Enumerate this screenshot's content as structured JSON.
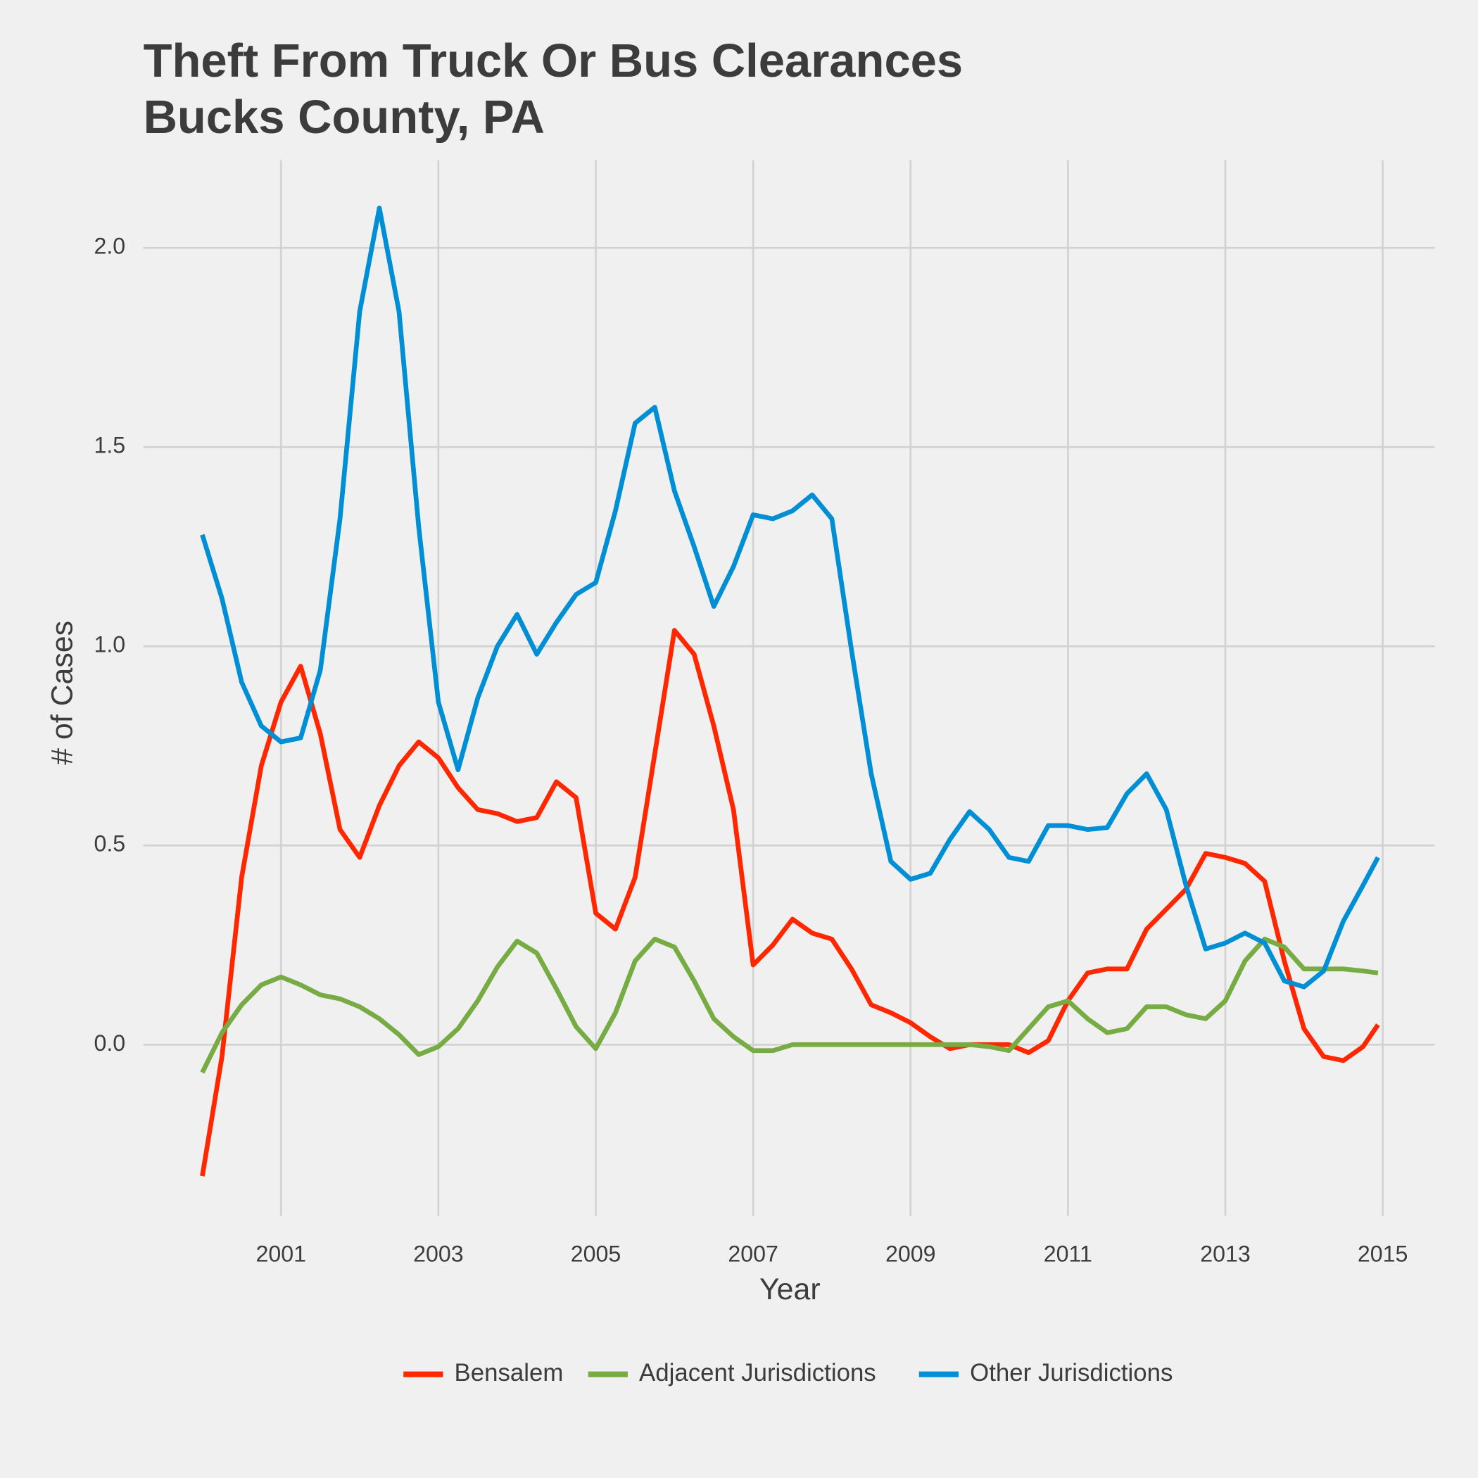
{
  "chart_data": {
    "type": "line",
    "title": [
      "Theft From Truck Or Bus Clearances",
      "Bucks County, PA"
    ],
    "x_label": "Year",
    "y_label": "# of Cases",
    "x": [
      2000,
      2000.25,
      2000.5,
      2000.75,
      2001,
      2001.25,
      2001.5,
      2001.75,
      2002,
      2002.25,
      2002.5,
      2002.75,
      2003,
      2003.25,
      2003.5,
      2003.75,
      2004,
      2004.25,
      2004.5,
      2004.75,
      2005,
      2005.25,
      2005.5,
      2005.75,
      2006,
      2006.25,
      2006.5,
      2006.75,
      2007,
      2007.25,
      2007.5,
      2007.75,
      2008,
      2008.25,
      2008.5,
      2008.75,
      2009,
      2009.25,
      2009.5,
      2009.75,
      2010,
      2010.25,
      2010.5,
      2010.75,
      2011,
      2011.25,
      2011.5,
      2011.75,
      2012,
      2012.25,
      2012.5,
      2012.75,
      2013,
      2013.25,
      2013.5,
      2013.75,
      2014,
      2014.25,
      2014.5,
      2014.75,
      2014.94
    ],
    "series": [
      {
        "name": "Bensalem",
        "color": "#ff2700",
        "values": [
          -0.33,
          -0.03,
          0.42,
          0.7,
          0.86,
          0.95,
          0.78,
          0.54,
          0.47,
          0.6,
          0.7,
          0.76,
          0.72,
          0.645,
          0.59,
          0.58,
          0.56,
          0.57,
          0.66,
          0.62,
          0.33,
          0.29,
          0.42,
          0.73,
          1.04,
          0.98,
          0.8,
          0.59,
          0.2,
          0.25,
          0.315,
          0.28,
          0.265,
          0.19,
          0.1,
          0.08,
          0.055,
          0.02,
          -0.01,
          0,
          0,
          0,
          -0.02,
          0.01,
          0.11,
          0.18,
          0.19,
          0.19,
          0.29,
          0.34,
          0.39,
          0.48,
          0.47,
          0.455,
          0.41,
          0.21,
          0.04,
          -0.03,
          -0.04,
          -0.005,
          0.05
        ]
      },
      {
        "name": "Adjacent Jurisdictions",
        "color": "#77ab43",
        "values": [
          -0.07,
          0.03,
          0.1,
          0.15,
          0.17,
          0.15,
          0.125,
          0.115,
          0.095,
          0.065,
          0.025,
          -0.025,
          -0.005,
          0.04,
          0.11,
          0.195,
          0.26,
          0.23,
          0.14,
          0.045,
          -0.01,
          0.08,
          0.21,
          0.265,
          0.245,
          0.16,
          0.065,
          0.02,
          -0.015,
          -0.015,
          0,
          0,
          0,
          0,
          0,
          0,
          0,
          0,
          0,
          0,
          -0.005,
          -0.015,
          0.04,
          0.095,
          0.11,
          0.065,
          0.03,
          0.04,
          0.095,
          0.095,
          0.075,
          0.065,
          0.11,
          0.21,
          0.265,
          0.245,
          0.19,
          0.19,
          0.19,
          0.185,
          0.18
        ]
      },
      {
        "name": "Other Jurisdictions",
        "color": "#008fd5",
        "values": [
          1.28,
          1.12,
          0.91,
          0.8,
          0.76,
          0.77,
          0.94,
          1.32,
          1.84,
          2.1,
          1.84,
          1.3,
          0.86,
          0.69,
          0.87,
          1.0,
          1.08,
          0.98,
          1.06,
          1.13,
          1.16,
          1.34,
          1.56,
          1.6,
          1.39,
          1.25,
          1.1,
          1.2,
          1.33,
          1.32,
          1.34,
          1.38,
          1.32,
          0.99,
          0.68,
          0.46,
          0.415,
          0.43,
          0.515,
          0.585,
          0.54,
          0.47,
          0.46,
          0.55,
          0.55,
          0.54,
          0.545,
          0.63,
          0.68,
          0.59,
          0.4,
          0.24,
          0.255,
          0.28,
          0.255,
          0.16,
          0.145,
          0.185,
          0.31,
          0.4,
          0.47
        ]
      }
    ],
    "xlim": [
      1999.25,
      2015.66
    ],
    "xticks": [
      2001,
      2003,
      2005,
      2007,
      2009,
      2011,
      2013,
      2015
    ],
    "ylim": [
      -0.43,
      2.22
    ],
    "yticks": [
      {
        "value": 0,
        "label": "0.0"
      },
      0.5,
      {
        "value": 1,
        "label": "1.0"
      },
      1.5,
      {
        "value": 2,
        "label": "2.0"
      }
    ],
    "grid": true,
    "legend": "bottom"
  }
}
